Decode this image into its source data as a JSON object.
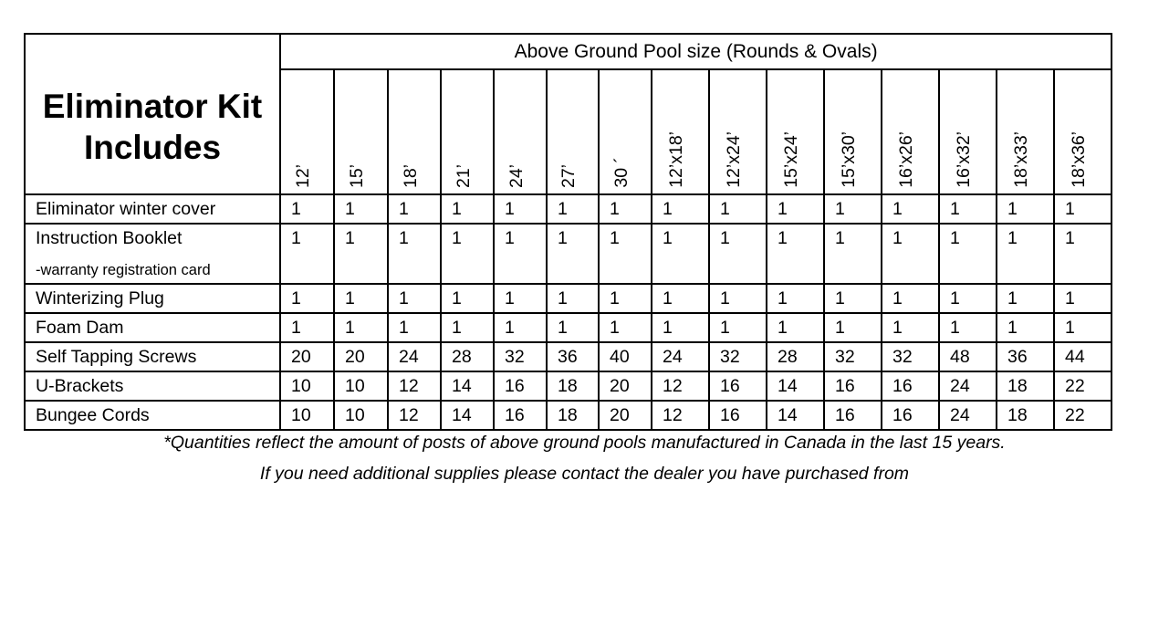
{
  "title": "Eliminator Kit Includes",
  "group_header": "Above Ground Pool size (Rounds & Ovals)",
  "sizes": [
    "12’",
    "15’",
    "18’",
    "21’",
    "24’",
    "27’",
    "30 ´",
    "12’x18’",
    "12’x24’",
    "15’x24’",
    "15’x30’",
    "16’x26’",
    "16’x32’",
    "18’x33’",
    "18’x36’"
  ],
  "rows": [
    {
      "label": "Eliminator winter cover",
      "values": [
        "1",
        "1",
        "1",
        "1",
        "1",
        "1",
        "1",
        "1",
        "1",
        "1",
        "1",
        "1",
        "1",
        "1",
        "1"
      ]
    },
    {
      "label": "Instruction Booklet",
      "sublabel": "-warranty registration card",
      "values": [
        "1",
        "1",
        "1",
        "1",
        "1",
        "1",
        "1",
        "1",
        "1",
        "1",
        "1",
        "1",
        "1",
        "1",
        "1"
      ]
    },
    {
      "label": "Winterizing Plug",
      "values": [
        "1",
        "1",
        "1",
        "1",
        "1",
        "1",
        "1",
        "1",
        "1",
        "1",
        "1",
        "1",
        "1",
        "1",
        "1"
      ]
    },
    {
      "label": "Foam Dam",
      "values": [
        "1",
        "1",
        "1",
        "1",
        "1",
        "1",
        "1",
        "1",
        "1",
        "1",
        "1",
        "1",
        "1",
        "1",
        "1"
      ]
    },
    {
      "label": "Self Tapping Screws",
      "values": [
        "20",
        "20",
        "24",
        "28",
        "32",
        "36",
        "40",
        "24",
        "32",
        "28",
        "32",
        "32",
        "48",
        "36",
        "44"
      ]
    },
    {
      "label": "U-Brackets",
      "values": [
        "10",
        "10",
        "12",
        "14",
        "16",
        "18",
        "20",
        "12",
        "16",
        "14",
        "16",
        "16",
        "24",
        "18",
        "22"
      ]
    },
    {
      "label": "Bungee Cords",
      "values": [
        "10",
        "10",
        "12",
        "14",
        "16",
        "18",
        "20",
        "12",
        "16",
        "14",
        "16",
        "16",
        "24",
        "18",
        "22"
      ]
    }
  ],
  "footnotes": [
    "*Quantities reflect the amount of posts of above ground pools manufactured in Canada in the last 15 years.",
    "If you need additional supplies please contact the dealer you have purchased from"
  ]
}
